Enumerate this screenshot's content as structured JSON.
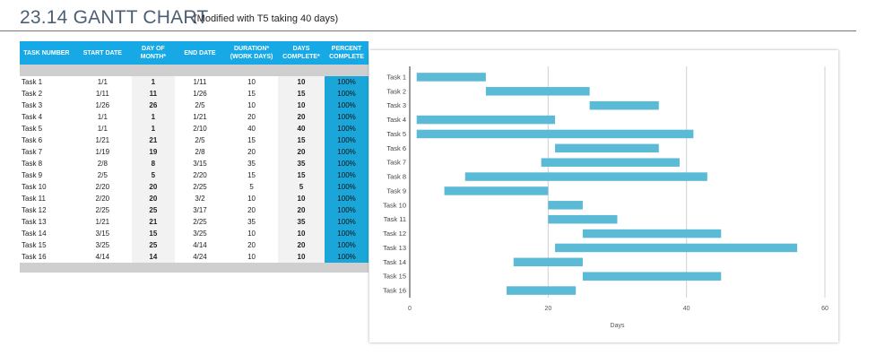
{
  "header": {
    "title": "23.14 GANTT CHART",
    "subtitle": "(Modified with T5 taking 40 days)"
  },
  "table": {
    "columns": [
      "TASK NUMBER",
      "START DATE",
      "DAY OF MONTH*",
      "END DATE",
      "DURATION* (WORK DAYS)",
      "DAYS COMPLETE*",
      "PERCENT COMPLETE"
    ],
    "rows": [
      [
        "Task 1",
        "1/1",
        "1",
        "1/11",
        "10",
        "10",
        "100%"
      ],
      [
        "Task 2",
        "1/11",
        "11",
        "1/26",
        "15",
        "15",
        "100%"
      ],
      [
        "Task 3",
        "1/26",
        "26",
        "2/5",
        "10",
        "10",
        "100%"
      ],
      [
        "Task 4",
        "1/1",
        "1",
        "1/21",
        "20",
        "20",
        "100%"
      ],
      [
        "Task 5",
        "1/1",
        "1",
        "2/10",
        "40",
        "40",
        "100%"
      ],
      [
        "Task 6",
        "1/21",
        "21",
        "2/5",
        "15",
        "15",
        "100%"
      ],
      [
        "Task 7",
        "1/19",
        "19",
        "2/8",
        "20",
        "20",
        "100%"
      ],
      [
        "Task 8",
        "2/8",
        "8",
        "3/15",
        "35",
        "35",
        "100%"
      ],
      [
        "Task 9",
        "2/5",
        "5",
        "2/20",
        "15",
        "15",
        "100%"
      ],
      [
        "Task 10",
        "2/20",
        "20",
        "2/25",
        "5",
        "5",
        "100%"
      ],
      [
        "Task 11",
        "2/20",
        "20",
        "3/2",
        "10",
        "10",
        "100%"
      ],
      [
        "Task 12",
        "2/25",
        "25",
        "3/17",
        "20",
        "20",
        "100%"
      ],
      [
        "Task 13",
        "1/21",
        "21",
        "2/25",
        "35",
        "35",
        "100%"
      ],
      [
        "Task 14",
        "3/15",
        "15",
        "3/25",
        "10",
        "10",
        "100%"
      ],
      [
        "Task 15",
        "3/25",
        "25",
        "4/14",
        "20",
        "20",
        "100%"
      ],
      [
        "Task 16",
        "4/14",
        "14",
        "4/24",
        "10",
        "10",
        "100%"
      ]
    ]
  },
  "chart_data": {
    "type": "bar",
    "orientation": "horizontal",
    "stacked_gantt": true,
    "categories": [
      "Task 1",
      "Task 2",
      "Task 3",
      "Task 4",
      "Task 5",
      "Task 6",
      "Task 7",
      "Task 8",
      "Task 9",
      "Task 10",
      "Task 11",
      "Task 12",
      "Task 13",
      "Task 14",
      "Task 15",
      "Task 16"
    ],
    "start": [
      1,
      11,
      26,
      1,
      1,
      21,
      19,
      8,
      5,
      20,
      20,
      25,
      21,
      15,
      25,
      14
    ],
    "duration": [
      10,
      15,
      10,
      20,
      40,
      15,
      20,
      35,
      15,
      5,
      10,
      20,
      35,
      10,
      20,
      10
    ],
    "bar_color": "#5bbad5",
    "xlabel": "Days",
    "ylabel": "",
    "xlim": [
      0,
      60
    ],
    "xticks": [
      0,
      20,
      40,
      60
    ],
    "grid": "vertical",
    "legend": "none"
  }
}
